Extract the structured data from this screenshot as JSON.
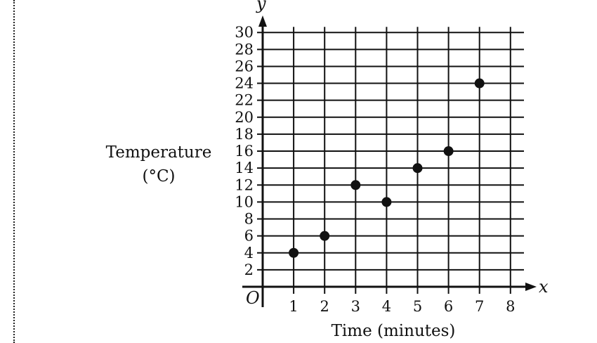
{
  "chart_data": {
    "type": "scatter",
    "title": "",
    "xlabel": "Time (minutes)",
    "ylabel_line1": "Temperature",
    "ylabel_line2": "(°C)",
    "x_axis_var": "x",
    "y_axis_var": "y",
    "origin_label": "O",
    "xlim": [
      0,
      8
    ],
    "ylim": [
      0,
      30
    ],
    "x_ticks": [
      1,
      2,
      3,
      4,
      5,
      6,
      7,
      8
    ],
    "y_ticks": [
      2,
      4,
      6,
      8,
      10,
      12,
      14,
      16,
      18,
      20,
      22,
      24,
      26,
      28,
      30
    ],
    "grid": true,
    "points": [
      {
        "x": 1,
        "y": 4
      },
      {
        "x": 2,
        "y": 6
      },
      {
        "x": 3,
        "y": 12
      },
      {
        "x": 4,
        "y": 10
      },
      {
        "x": 5,
        "y": 14
      },
      {
        "x": 6,
        "y": 16
      },
      {
        "x": 7,
        "y": 24
      }
    ]
  }
}
